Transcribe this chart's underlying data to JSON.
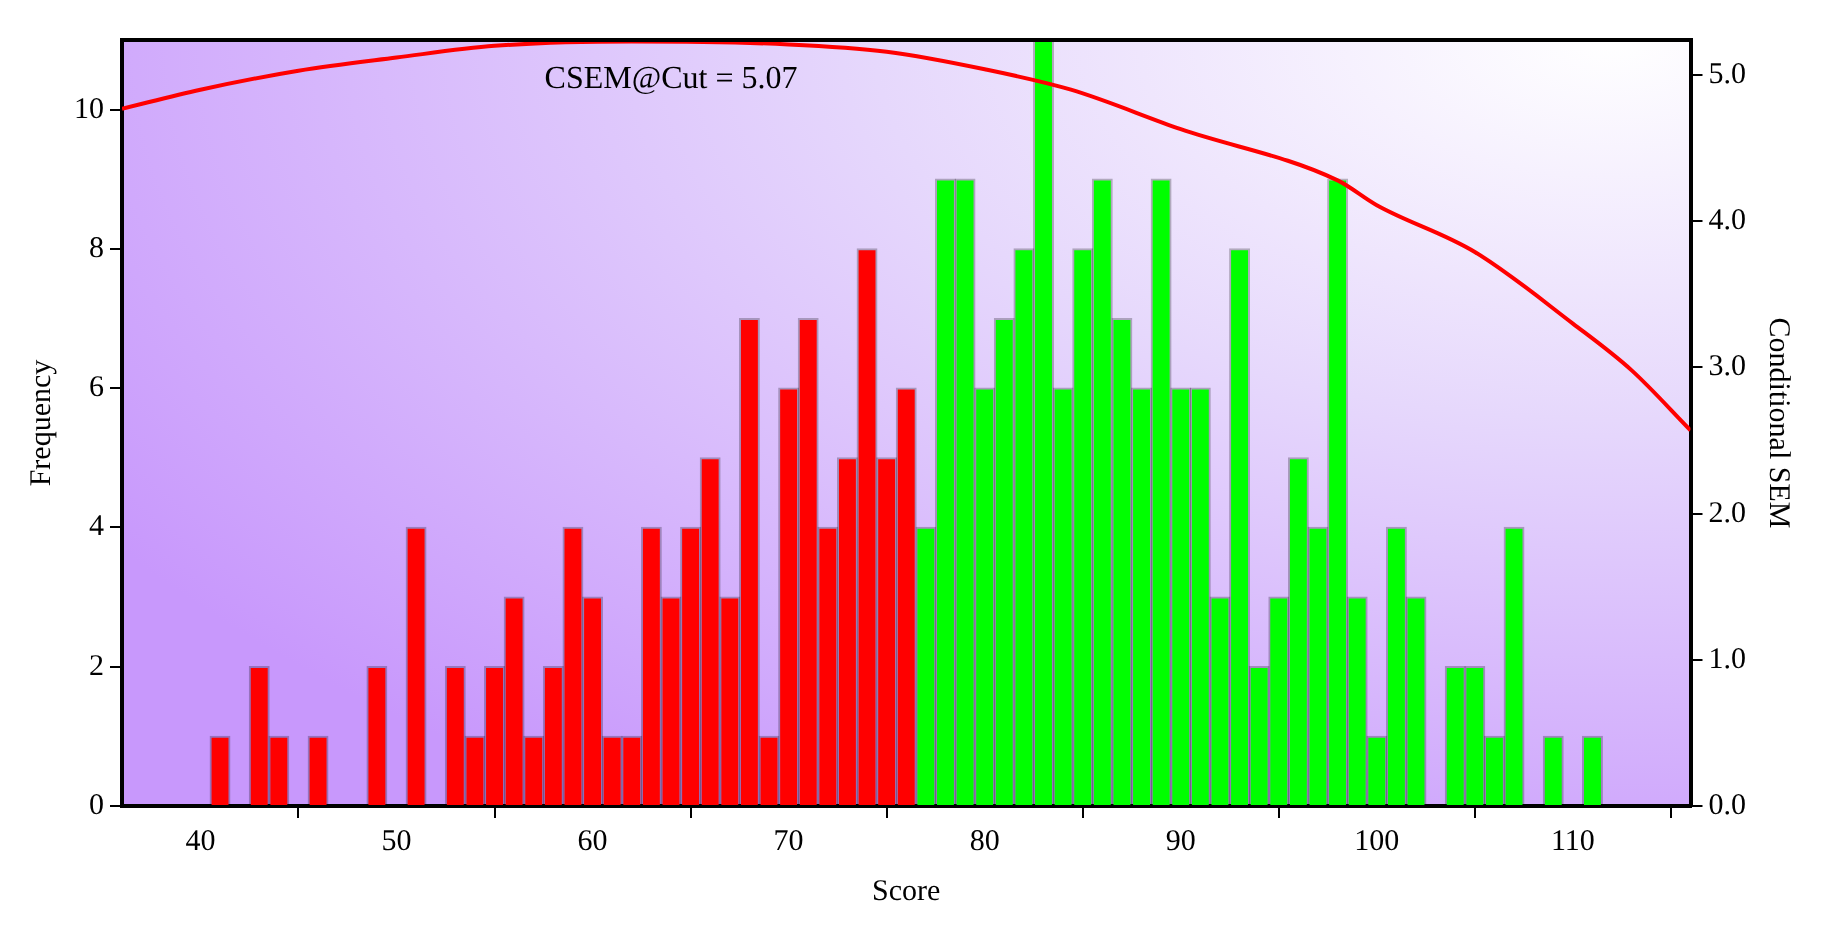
{
  "chart_data": {
    "type": "histogram",
    "xlabel": "Score",
    "ylabel": "Frequency",
    "y2label": "Conditional SEM",
    "annotations": [
      "CSEM@Cut = 5.07"
    ],
    "bins": [
      40.5,
      41.5,
      42.5,
      43.5,
      44.5,
      45.5,
      46.5,
      47.5,
      48.5,
      49.5,
      50.5,
      51.5,
      52.5,
      53.5,
      54.5,
      55.5,
      56.5,
      57.5,
      58.5,
      59.5,
      60.5,
      61.5,
      62.5,
      63.5,
      64.5,
      65.5,
      66.5,
      67.5,
      68.5,
      69.5,
      70.5,
      71.5,
      72.5,
      73.5,
      74.5,
      75.5,
      76.5,
      77.5,
      78.5,
      79.5,
      80.5,
      81.5,
      82.5,
      83.5,
      84.5,
      85.5,
      86.5,
      87.5,
      88.5,
      89.5,
      90.5,
      91.5,
      92.5,
      93.5,
      94.5,
      95.5,
      96.5,
      97.5,
      98.5,
      99.5,
      100.5,
      101.5,
      102.5,
      103.5,
      104.5,
      105.5,
      106.5,
      107.5,
      108.5,
      109.5,
      110.5,
      111.5
    ],
    "values": [
      1,
      0,
      2,
      1,
      0,
      1,
      0,
      0,
      2,
      0,
      4,
      0,
      2,
      1,
      2,
      3,
      1,
      2,
      4,
      3,
      1,
      1,
      4,
      3,
      4,
      5,
      3,
      7,
      1,
      6,
      7,
      4,
      5,
      8,
      5,
      6,
      4,
      9,
      9,
      6,
      7,
      8,
      11,
      6,
      8,
      9,
      7,
      6,
      9,
      6,
      6,
      3,
      8,
      2,
      3,
      5,
      4,
      9,
      3,
      1,
      4,
      3,
      0,
      2,
      2,
      1,
      4,
      0,
      1,
      0,
      1
    ],
    "colors": [
      "#ff0000",
      "#ff0000",
      "#ff0000",
      "#ff0000",
      "#ff0000",
      "#ff0000",
      "#ff0000",
      "#ff0000",
      "#ff0000",
      "#ff0000",
      "#ff0000",
      "#ff0000",
      "#ff0000",
      "#ff0000",
      "#ff0000",
      "#ff0000",
      "#ff0000",
      "#ff0000",
      "#ff0000",
      "#ff0000",
      "#ff0000",
      "#ff0000",
      "#ff0000",
      "#ff0000",
      "#ff0000",
      "#ff0000",
      "#ff0000",
      "#ff0000",
      "#ff0000",
      "#ff0000",
      "#ff0000",
      "#ff0000",
      "#ff0000",
      "#ff0000",
      "#ff0000",
      "#ff0000",
      "#00ff00",
      "#00ff00",
      "#00ff00",
      "#00ff00",
      "#00ff00",
      "#00ff00",
      "#00ff00",
      "#00ff00",
      "#00ff00",
      "#00ff00",
      "#00ff00",
      "#00ff00",
      "#00ff00",
      "#00ff00",
      "#00ff00",
      "#00ff00",
      "#00ff00",
      "#00ff00",
      "#00ff00",
      "#00ff00",
      "#00ff00",
      "#00ff00",
      "#00ff00",
      "#00ff00",
      "#00ff00",
      "#00ff00",
      "#00ff00",
      "#00ff00",
      "#00ff00",
      "#00ff00",
      "#00ff00",
      "#00ff00",
      "#00ff00",
      "#00ff00",
      "#00ff00"
    ],
    "series": [
      {
        "type": "line",
        "axis": "y2",
        "color": "#ff0000",
        "marker": "none",
        "x": [
          36,
          40,
          45,
          50,
          55,
          62,
          70,
          75,
          80,
          84.4,
          90,
          98,
          100,
          105,
          110,
          113,
          116
        ],
        "values": [
          4.77,
          4.9,
          5.03,
          5.12,
          5.2,
          5.23,
          5.21,
          5.16,
          5.04,
          4.9,
          4.63,
          4.28,
          4.11,
          3.79,
          3.3,
          2.98,
          2.57
        ]
      }
    ],
    "xlim": [
      36,
      116
    ],
    "xticks": [
      40,
      50,
      60,
      70,
      80,
      90,
      100,
      110
    ],
    "ylim": [
      0,
      11
    ],
    "yticks": [
      0,
      2,
      4,
      6,
      8,
      10
    ],
    "y2lim": [
      0,
      5.24
    ],
    "y2ticks": [
      {
        "value": 0,
        "label": "0.0"
      },
      {
        "value": 1,
        "label": "1.0"
      },
      {
        "value": 2,
        "label": "2.0"
      },
      {
        "value": 3,
        "label": "3.0"
      },
      {
        "value": 4,
        "label": "4.0"
      },
      {
        "value": 5,
        "label": "5.0"
      }
    ],
    "grid": false,
    "legend": false
  }
}
